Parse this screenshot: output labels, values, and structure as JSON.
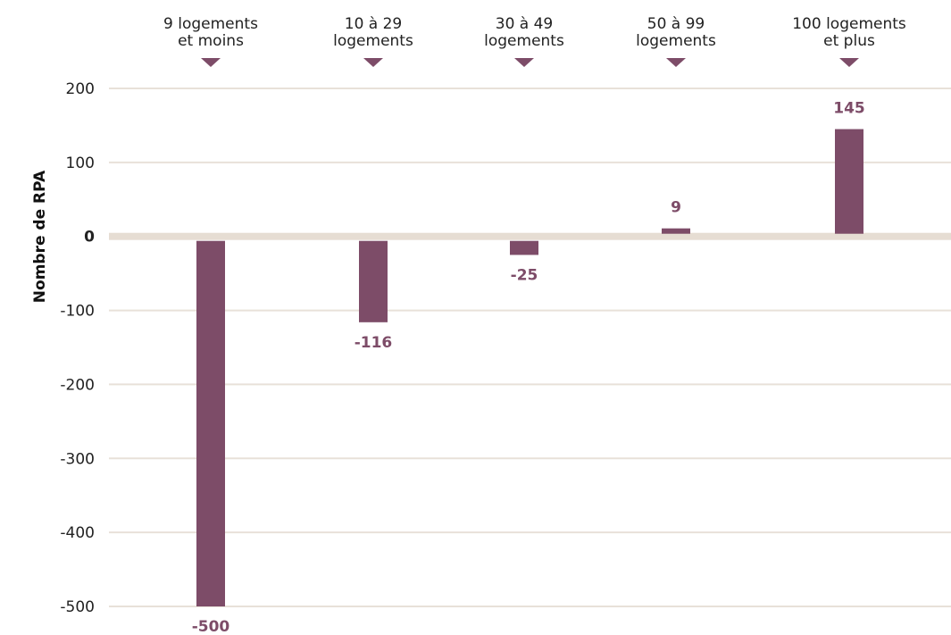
{
  "chart_data": {
    "type": "bar",
    "title": "",
    "xlabel": "",
    "ylabel": "Nombre de RPA",
    "categories": [
      [
        "9 logements",
        "et moins"
      ],
      [
        "10 à 29",
        "logements"
      ],
      [
        "30 à 49",
        "logements"
      ],
      [
        "50 à 99",
        "logements"
      ],
      [
        "100 logements",
        "et plus"
      ]
    ],
    "values": [
      -500,
      -116,
      -25,
      9,
      145
    ],
    "value_labels": [
      "-500",
      "-116",
      "-25",
      "9",
      "145"
    ],
    "yticks": [
      200,
      100,
      0,
      -100,
      -200,
      -300,
      -400,
      -500
    ],
    "ytick_labels": [
      "200",
      "100",
      "0",
      "-100",
      "-200",
      "-300",
      "-400",
      "-500"
    ],
    "ylim": [
      -500,
      200
    ],
    "grid": true,
    "legend": "none",
    "colors": {
      "bar": "#7d4c68",
      "label": "#7d4c68",
      "grid": "#e8e1d9",
      "zero_line": "#e6ddd3",
      "marker": "#7d4c68"
    }
  }
}
